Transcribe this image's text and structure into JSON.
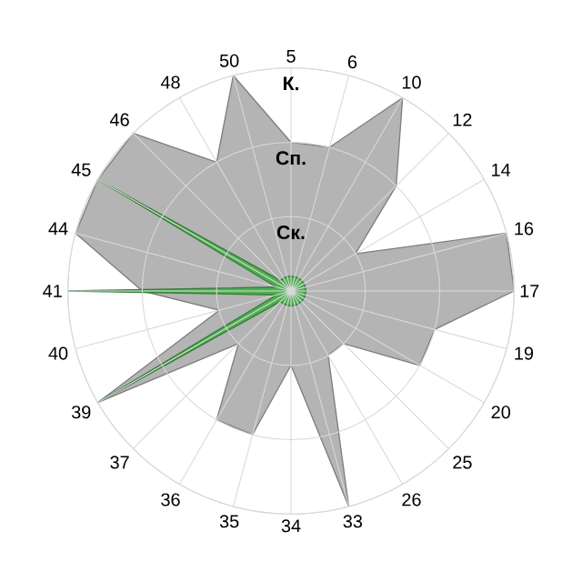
{
  "chart_data": {
    "type": "radar",
    "categories": [
      "5",
      "6",
      "10",
      "12",
      "14",
      "16",
      "17",
      "19",
      "20",
      "25",
      "26",
      "33",
      "34",
      "35",
      "36",
      "37",
      "39",
      "40",
      "41",
      "44",
      "45",
      "46",
      "48",
      "50"
    ],
    "series": [
      {
        "color": "#b4b4b4",
        "values": [
          2,
          2,
          3,
          2,
          1,
          3,
          3,
          2,
          2,
          1,
          1,
          3,
          1,
          2,
          2,
          1,
          3,
          1,
          2,
          3,
          3,
          3,
          2,
          3
        ]
      },
      {
        "color": "#4caf50",
        "values": [
          0.2,
          0.2,
          0.2,
          0.2,
          0.2,
          0.2,
          0.2,
          0.2,
          0.2,
          0.2,
          0.2,
          0.2,
          0.2,
          0.2,
          0.2,
          0.2,
          3,
          0.2,
          3,
          0.2,
          3,
          0.2,
          0.2,
          0.2
        ]
      }
    ],
    "ylim": [
      0,
      3
    ],
    "yticks": [
      {
        "value": 1,
        "label": "Ск."
      },
      {
        "value": 2,
        "label": "Сп."
      },
      {
        "value": 3,
        "label": "К."
      }
    ],
    "grid": true
  }
}
